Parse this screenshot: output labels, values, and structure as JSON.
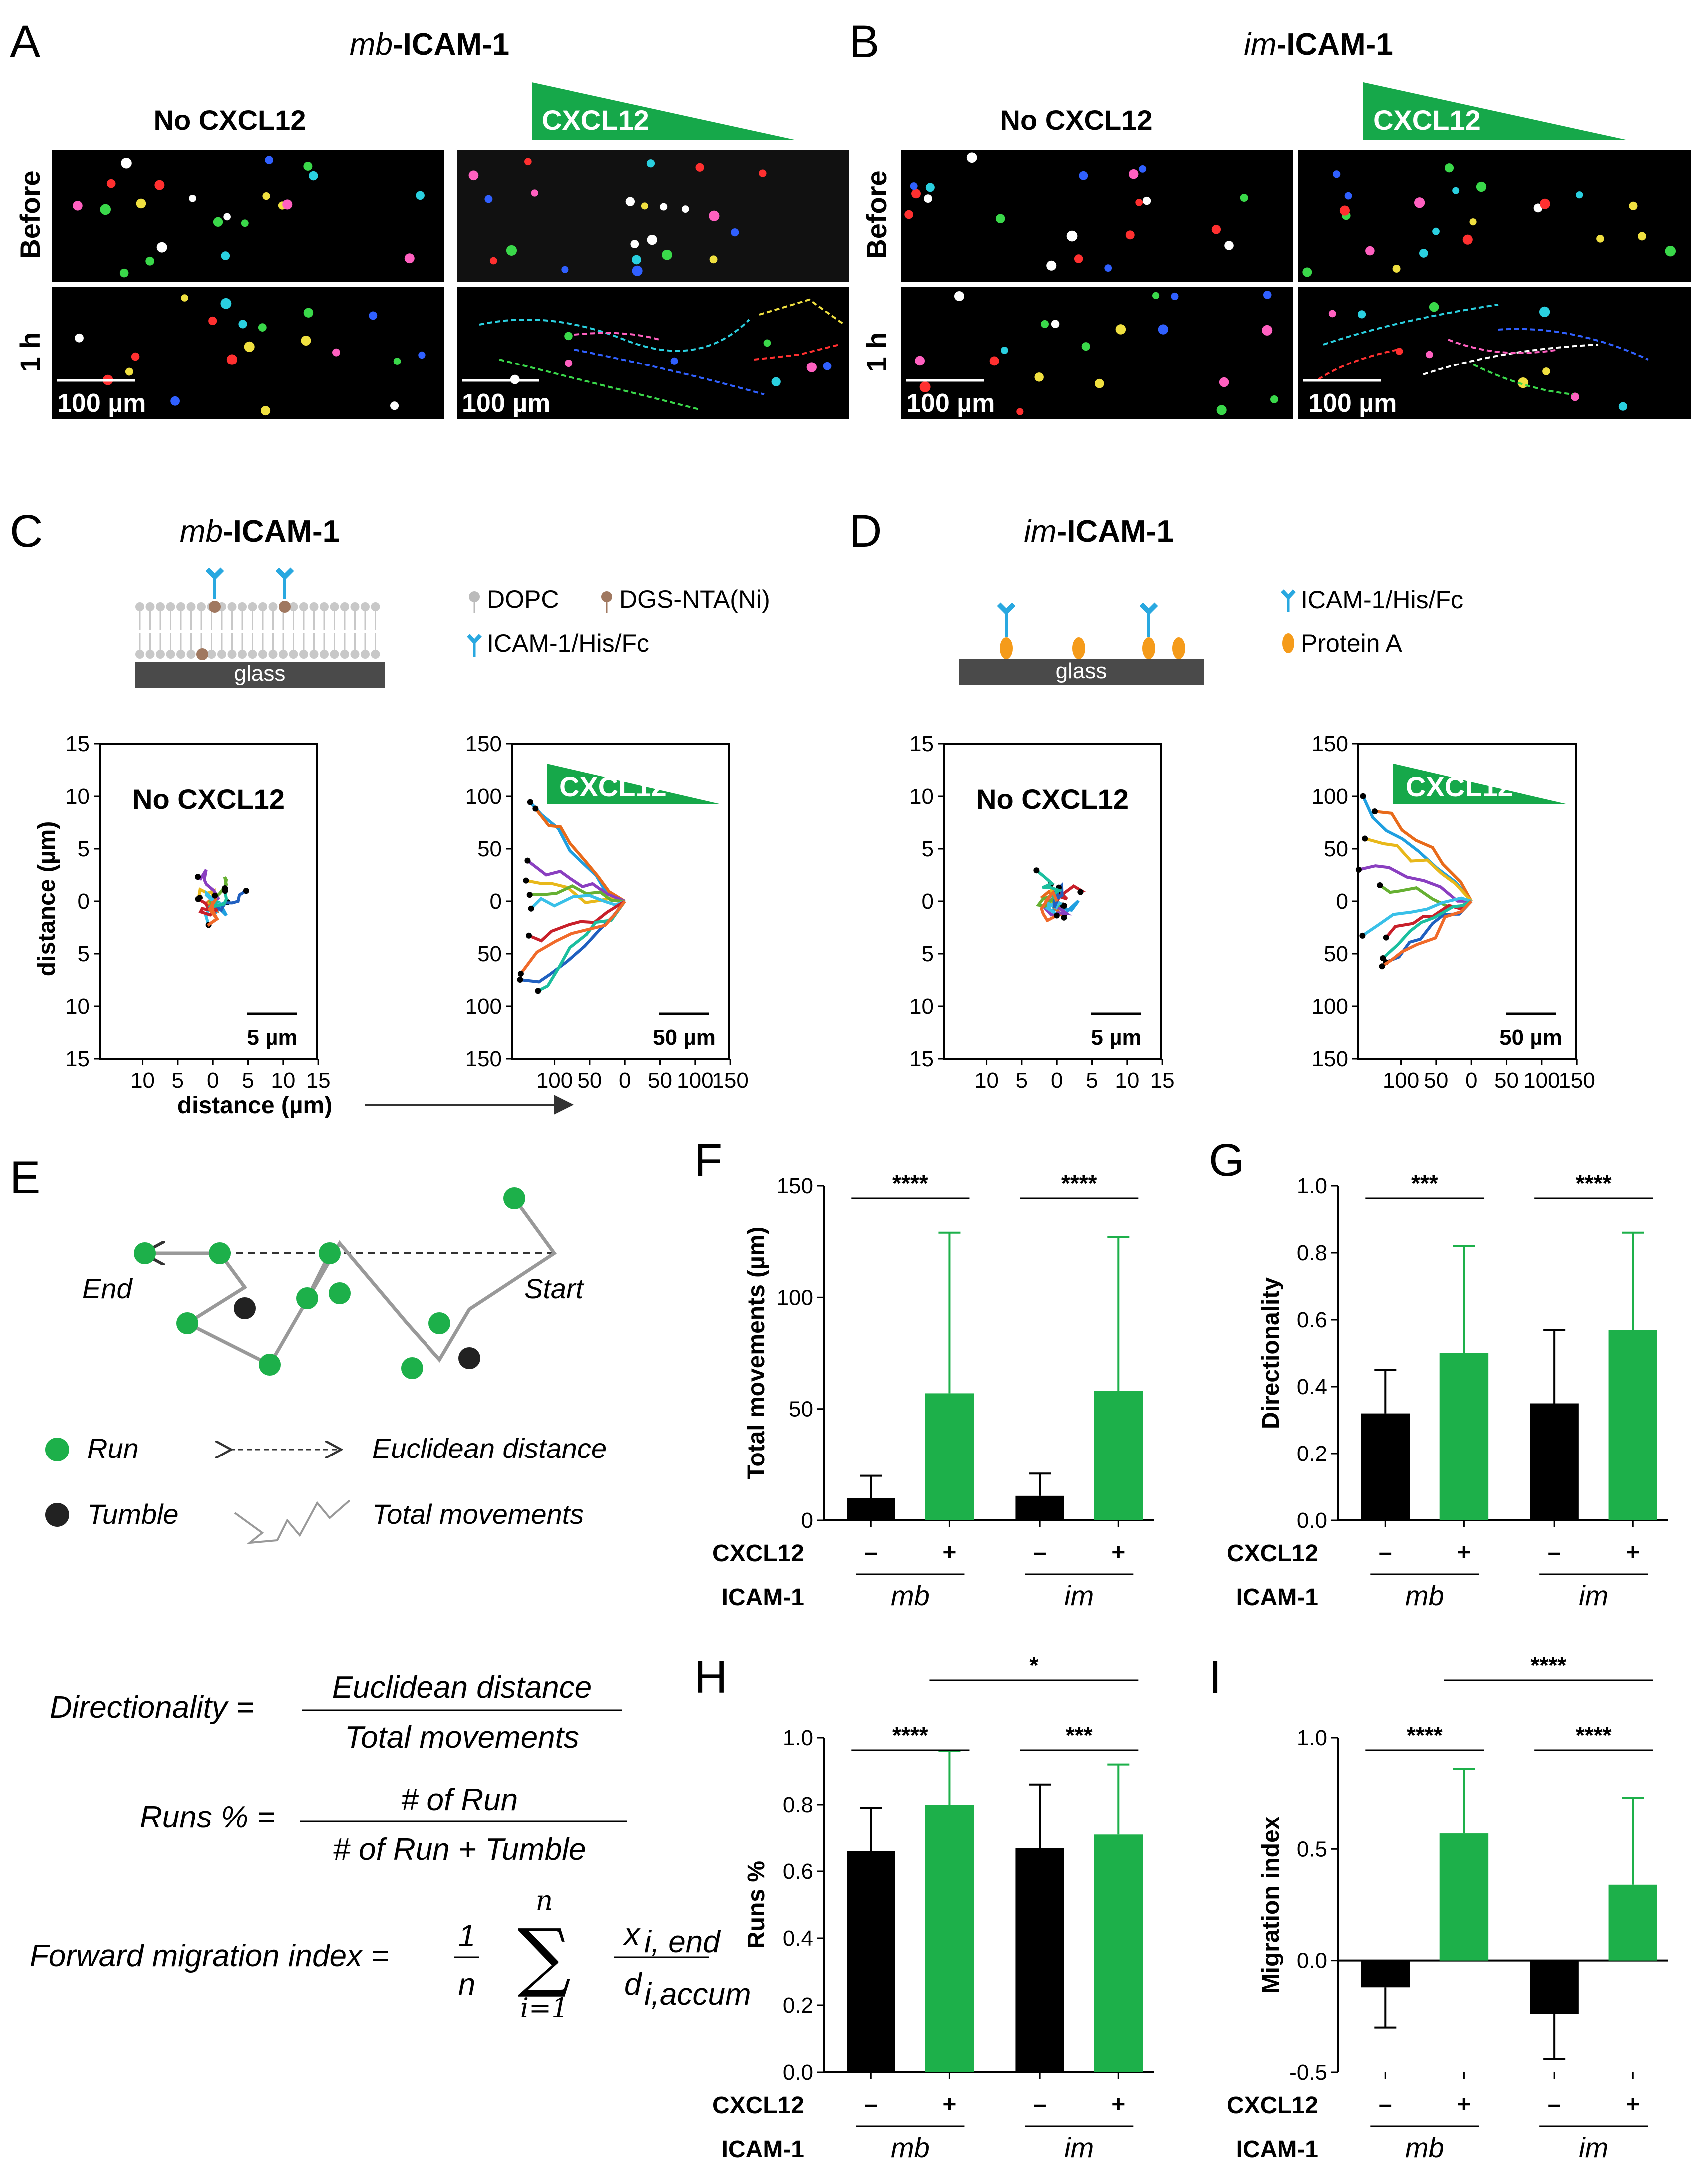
{
  "panels": {
    "A": {
      "label": "A",
      "title_italic": "mb",
      "title_rest": "-ICAM-1",
      "col1": "No CXCL12",
      "col2": "CXCL12",
      "row1": "Before",
      "row2": "1 h",
      "scalebar": "100 µm"
    },
    "B": {
      "label": "B",
      "title_italic": "im",
      "title_rest": "-ICAM-1",
      "col1": "No CXCL12",
      "col2": "CXCL12",
      "row1": "Before",
      "row2": "1 h",
      "scalebar": "100 µm"
    },
    "C": {
      "label": "C",
      "title_italic": "mb",
      "title_rest": "-ICAM-1",
      "glass": "glass",
      "legend": [
        "DOPC",
        "DGS-NTA(Ni)",
        "ICAM-1/His/Fc"
      ],
      "plot1": {
        "label": "No CXCL12",
        "yticks": [
          "15",
          "10",
          "5",
          "0",
          "5",
          "10",
          "15"
        ],
        "xticks": [
          "10",
          "5",
          "0",
          "5",
          "10",
          "15"
        ],
        "scale": "5 µm"
      },
      "plot2": {
        "label": "CXCL12",
        "yticks": [
          "150",
          "100",
          "50",
          "0",
          "50",
          "100",
          "150"
        ],
        "xticks": [
          "100",
          "50",
          "0",
          "50",
          "100",
          "150"
        ],
        "scale": "50 µm"
      },
      "ylabel": "distance (µm)",
      "xlabel": "distance (µm)"
    },
    "D": {
      "label": "D",
      "title_italic": "im",
      "title_rest": "-ICAM-1",
      "glass": "glass",
      "legend": [
        "ICAM-1/His/Fc",
        "Protein A"
      ],
      "plot1": {
        "label": "No CXCL12",
        "yticks": [
          "15",
          "10",
          "5",
          "0",
          "5",
          "10",
          "15"
        ],
        "xticks": [
          "10",
          "5",
          "0",
          "5",
          "10",
          "15"
        ],
        "scale": "5 µm"
      },
      "plot2": {
        "label": "CXCL12",
        "yticks": [
          "150",
          "100",
          "50",
          "0",
          "50",
          "100",
          "150"
        ],
        "xticks": [
          "100",
          "50",
          "0",
          "50",
          "100",
          "150"
        ],
        "scale": "50 µm"
      }
    },
    "E": {
      "label": "E",
      "end": "End",
      "start": "Start",
      "run": "Run",
      "tumble": "Tumble",
      "euclid": "Euclidean distance",
      "total": "Total movements",
      "f1_lhs": "Directionality =",
      "f1_num": "Euclidean distance",
      "f1_den": "Total movements",
      "f2_lhs": "Runs % =",
      "f2_num": "# of Run",
      "f2_den": "# of Run + Tumble",
      "f3_lhs": "Forward migration index =",
      "f3_one": "1",
      "f3_n": "n",
      "f3_sum_top": "n",
      "f3_sum_bot": "i=1",
      "f3_x": "x",
      "f3_xsub": "i, end",
      "f3_d": "d",
      "f3_dsub": "i,accum"
    }
  },
  "row_labels": {
    "cxcl12": "CXCL12",
    "icam1": "ICAM-1",
    "minus": "–",
    "plus": "+",
    "mb": "mb",
    "im": "im"
  },
  "colors": {
    "black_bar": "#000000",
    "green_bar": "#1db04a",
    "green_wedge": "#16a84a"
  },
  "chart_data": [
    {
      "id": "F",
      "type": "bar",
      "ylabel": "Total movements (µm)",
      "ylim": [
        0,
        150
      ],
      "yticks": [
        0,
        50,
        100,
        150
      ],
      "categories": [
        "mb –",
        "mb +",
        "im –",
        "im +"
      ],
      "values": [
        10,
        57,
        11,
        58
      ],
      "errors": [
        10,
        72,
        10,
        69
      ],
      "sig": [
        {
          "from": 0,
          "to": 1,
          "text": "****"
        },
        {
          "from": 2,
          "to": 3,
          "text": "****"
        }
      ]
    },
    {
      "id": "G",
      "type": "bar",
      "ylabel": "Directionality",
      "ylim": [
        0,
        1.0
      ],
      "yticks": [
        0.0,
        0.2,
        0.4,
        0.6,
        0.8,
        1.0
      ],
      "categories": [
        "mb –",
        "mb +",
        "im –",
        "im +"
      ],
      "values": [
        0.32,
        0.5,
        0.35,
        0.57
      ],
      "errors": [
        0.13,
        0.32,
        0.22,
        0.29
      ],
      "sig": [
        {
          "from": 0,
          "to": 1,
          "text": "***"
        },
        {
          "from": 2,
          "to": 3,
          "text": "****"
        }
      ]
    },
    {
      "id": "H",
      "type": "bar",
      "ylabel": "Runs %",
      "ylim": [
        0,
        1.0
      ],
      "yticks": [
        0.0,
        0.2,
        0.4,
        0.6,
        0.8,
        1.0
      ],
      "categories": [
        "mb –",
        "mb +",
        "im –",
        "im +"
      ],
      "values": [
        0.66,
        0.8,
        0.67,
        0.71
      ],
      "errors": [
        0.13,
        0.16,
        0.19,
        0.21
      ],
      "sig": [
        {
          "from": 0,
          "to": 1,
          "text": "****"
        },
        {
          "from": 2,
          "to": 3,
          "text": "***"
        },
        {
          "from": 1,
          "to": 3,
          "text": "*",
          "level": 2
        }
      ]
    },
    {
      "id": "I",
      "type": "bar",
      "ylabel": "Migration index",
      "ylim": [
        -0.5,
        1.0
      ],
      "yticks": [
        -0.5,
        0.0,
        0.5,
        1.0
      ],
      "categories": [
        "mb –",
        "mb +",
        "im –",
        "im +"
      ],
      "values": [
        -0.12,
        0.57,
        -0.24,
        0.34
      ],
      "errors": [
        0.18,
        0.29,
        0.2,
        0.39
      ],
      "sig": [
        {
          "from": 0,
          "to": 1,
          "text": "****"
        },
        {
          "from": 2,
          "to": 3,
          "text": "****"
        },
        {
          "from": 1,
          "to": 3,
          "text": "****",
          "level": 2
        }
      ]
    }
  ]
}
